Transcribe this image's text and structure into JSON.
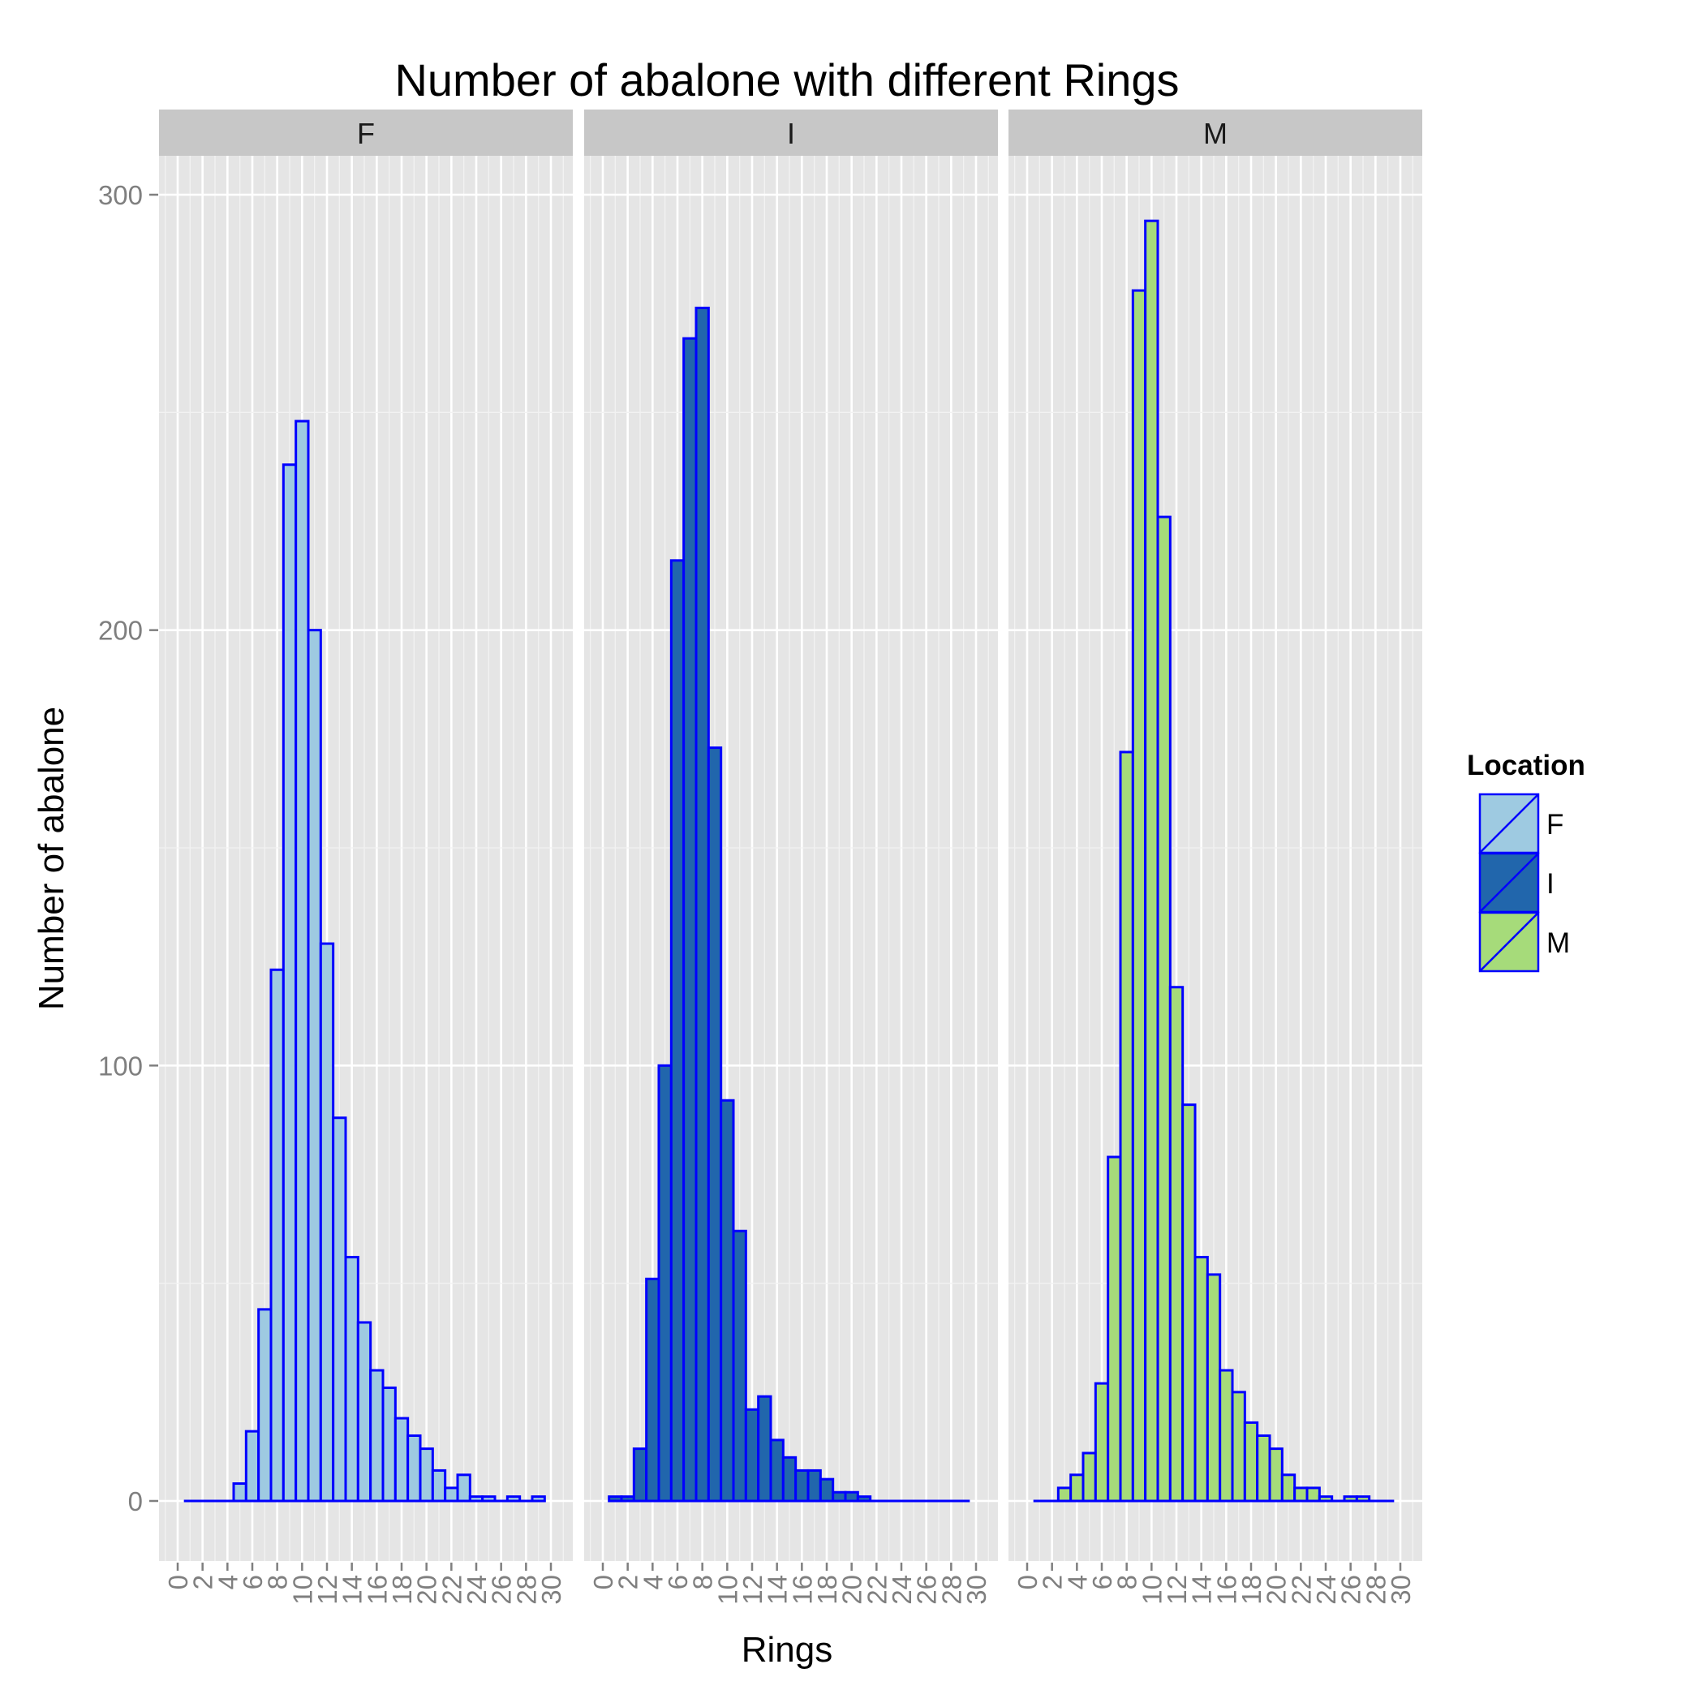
{
  "chart_data": {
    "type": "bar",
    "title": "Number of abalone with different Rings",
    "xlabel": "Rings",
    "ylabel": "Number of abalone",
    "xlim": [
      0,
      30
    ],
    "ylim": [
      0,
      300
    ],
    "x_ticks": [
      "0",
      "2",
      "4",
      "6",
      "8",
      "10",
      "12",
      "14",
      "16",
      "18",
      "20",
      "22",
      "24",
      "26",
      "28",
      "30"
    ],
    "y_ticks": [
      "0",
      "100",
      "200",
      "300"
    ],
    "grid": true,
    "legend": {
      "title": "Location",
      "position": "right"
    },
    "bins": [
      1,
      2,
      3,
      4,
      5,
      6,
      7,
      8,
      9,
      10,
      11,
      12,
      13,
      14,
      15,
      16,
      17,
      18,
      19,
      20,
      21,
      22,
      23,
      24,
      25,
      26,
      27,
      28,
      29
    ],
    "series": [
      {
        "name": "F",
        "color": "#9ecae1",
        "values": [
          0,
          0,
          0,
          0,
          4,
          16,
          44,
          122,
          238,
          248,
          200,
          128,
          88,
          56,
          41,
          30,
          26,
          19,
          15,
          12,
          7,
          3,
          6,
          1,
          1,
          0,
          1,
          0,
          1
        ]
      },
      {
        "name": "I",
        "color": "#2166ac",
        "values": [
          1,
          1,
          12,
          51,
          100,
          216,
          267,
          274,
          173,
          92,
          62,
          21,
          24,
          14,
          10,
          7,
          7,
          5,
          2,
          2,
          1,
          0,
          0,
          0,
          0,
          0,
          0,
          0,
          0
        ]
      },
      {
        "name": "M",
        "color": "#a6db7a",
        "values": [
          0,
          0,
          3,
          6,
          11,
          27,
          79,
          172,
          278,
          294,
          226,
          118,
          91,
          56,
          52,
          30,
          25,
          18,
          15,
          12,
          6,
          3,
          3,
          1,
          0,
          1,
          1,
          0,
          0
        ]
      }
    ],
    "bar_outline_color": "#0000ff"
  }
}
